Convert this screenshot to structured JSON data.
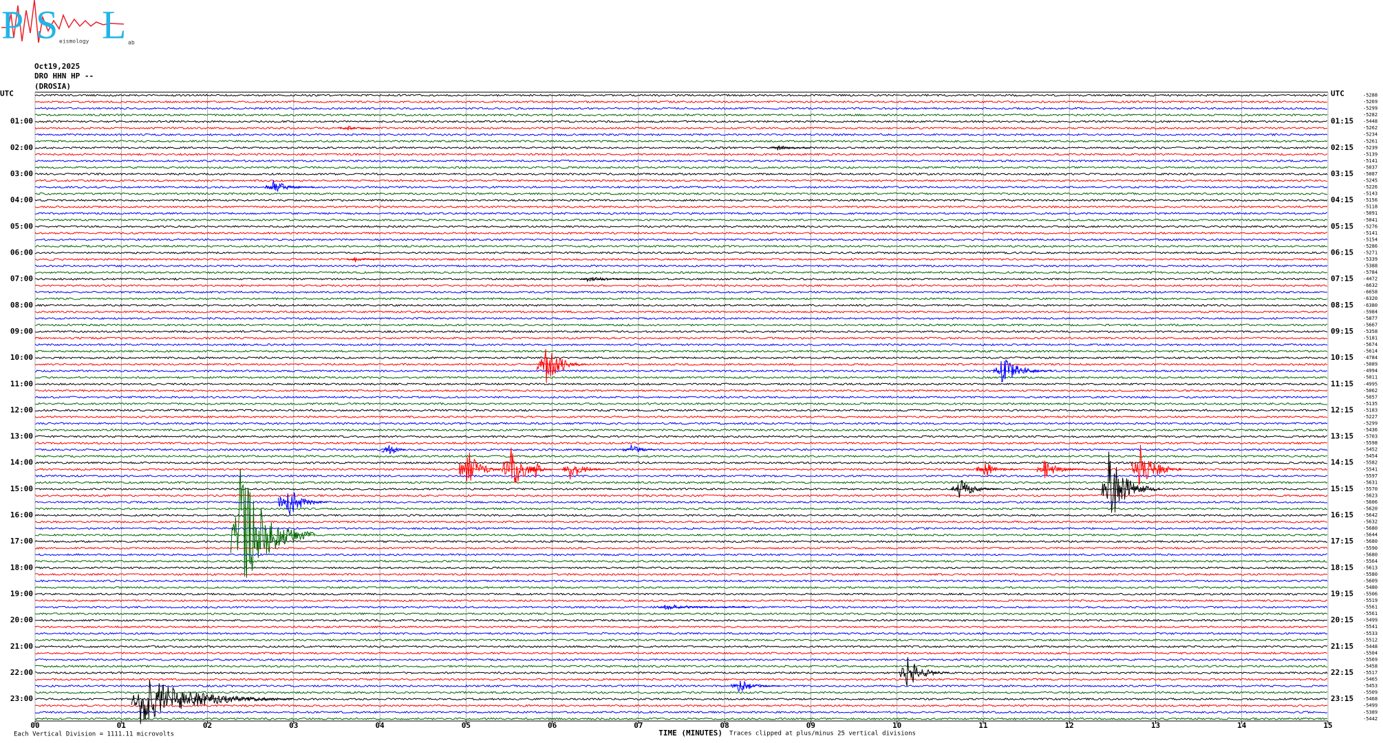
{
  "logo": {
    "letters": [
      "P",
      "S",
      "L"
    ],
    "words": [
      "eismology",
      "ab"
    ]
  },
  "header": {
    "date": "Oct19,2025",
    "station": "DRO HHN HP --",
    "site": "(DROSIA)"
  },
  "chart_data": {
    "type": "helicorder",
    "xlabel": "TIME (MINUTES)",
    "scale_note": "Each Vertical Division = 1111.11 microvolts",
    "clip_note": "Traces clipped at plus/minus 25 vertical divisions",
    "xlim": [
      0,
      15
    ],
    "xticks": [
      {
        "value": 0,
        "label": "00"
      },
      {
        "value": 1,
        "label": "01"
      },
      {
        "value": 2,
        "label": "02"
      },
      {
        "value": 3,
        "label": "03"
      },
      {
        "value": 4,
        "label": "04"
      },
      {
        "value": 5,
        "label": "05"
      },
      {
        "value": 6,
        "label": "06"
      },
      {
        "value": 7,
        "label": "07"
      },
      {
        "value": 8,
        "label": "08"
      },
      {
        "value": 9,
        "label": "09"
      },
      {
        "value": 10,
        "label": "10"
      },
      {
        "value": 11,
        "label": "11"
      },
      {
        "value": 12,
        "label": "12"
      },
      {
        "value": 13,
        "label": "13"
      },
      {
        "value": 14,
        "label": "14"
      },
      {
        "value": 15,
        "label": "15"
      }
    ],
    "grid": true,
    "trace_colors": [
      "#000000",
      "#ff0000",
      "#0000ff",
      "#006400"
    ],
    "left_labels": [
      "UTC",
      "01:00",
      "02:00",
      "03:00",
      "04:00",
      "05:00",
      "06:00",
      "07:00",
      "08:00",
      "09:00",
      "10:00",
      "11:00",
      "12:00",
      "13:00",
      "14:00",
      "15:00",
      "16:00",
      "17:00",
      "18:00",
      "19:00",
      "20:00",
      "21:00",
      "22:00",
      "23:00"
    ],
    "right_labels": [
      "UTC",
      "01:15",
      "02:15",
      "03:15",
      "04:15",
      "05:15",
      "06:15",
      "07:15",
      "08:15",
      "09:15",
      "10:15",
      "11:15",
      "12:15",
      "13:15",
      "14:15",
      "15:15",
      "16:15",
      "17:15",
      "18:15",
      "19:15",
      "20:15",
      "21:15",
      "22:15",
      "23:15"
    ],
    "offsets": [
      -5288,
      -5269,
      -5299,
      -5282,
      -5448,
      -5262,
      -5234,
      -5261,
      -5239,
      -5139,
      -5141,
      -5037,
      -5087,
      -5245,
      -5226,
      -5143,
      -5156,
      -5118,
      -5091,
      -5041,
      -5276,
      -5141,
      -5154,
      -5286,
      -5271,
      -5339,
      -5388,
      -5784,
      -4472,
      -6632,
      -6658,
      -6320,
      -6380,
      -5984,
      -5877,
      -5667,
      -5358,
      -5181,
      -5674,
      -5614,
      -4784,
      -5089,
      -4994,
      -5011,
      -4995,
      -5062,
      -5057,
      -5135,
      -5183,
      -5227,
      -5299,
      -5436,
      -5703,
      -5598,
      -5452,
      -5454,
      -5582,
      -5541,
      -5597,
      -5631,
      -5570,
      -5623,
      -5606,
      -5620,
      -5642,
      -5632,
      -5680,
      -5644,
      -5680,
      -5590,
      -5680,
      -5564,
      -5613,
      -5580,
      -5609,
      -5480,
      -5506,
      -5519,
      -5561,
      -5561,
      -5499,
      -5541,
      -5533,
      -5512,
      -5448,
      -5504,
      -5569,
      -5458,
      -5517,
      -5465,
      -5453,
      -5509,
      -5468,
      -5499,
      -5389,
      -5442
    ],
    "events": [
      {
        "trace": 5,
        "minute": 3.6,
        "amplitude": 0.5,
        "duration": 0.3
      },
      {
        "trace": 8,
        "minute": 8.6,
        "amplitude": 0.5,
        "duration": 0.4
      },
      {
        "trace": 14,
        "minute": 2.75,
        "amplitude": 1.2,
        "duration": 0.5
      },
      {
        "trace": 25,
        "minute": 3.7,
        "amplitude": 0.6,
        "duration": 0.3
      },
      {
        "trace": 28,
        "minute": 6.4,
        "amplitude": 0.5,
        "duration": 0.8
      },
      {
        "trace": 41,
        "minute": 5.9,
        "amplitude": 4,
        "duration": 0.5
      },
      {
        "trace": 42,
        "minute": 11.2,
        "amplitude": 2.5,
        "duration": 0.6
      },
      {
        "trace": 54,
        "minute": 4.1,
        "amplitude": 1.5,
        "duration": 0.2
      },
      {
        "trace": 54,
        "minute": 6.9,
        "amplitude": 1.2,
        "duration": 0.3
      },
      {
        "trace": 57,
        "minute": 5.0,
        "amplitude": 4,
        "duration": 0.4
      },
      {
        "trace": 57,
        "minute": 5.5,
        "amplitude": 5,
        "duration": 0.4
      },
      {
        "trace": 57,
        "minute": 5.8,
        "amplitude": 1.5,
        "duration": 0.2
      },
      {
        "trace": 57,
        "minute": 6.2,
        "amplitude": 2,
        "duration": 0.4
      },
      {
        "trace": 57,
        "minute": 11.0,
        "amplitude": 1.5,
        "duration": 0.4
      },
      {
        "trace": 57,
        "minute": 11.7,
        "amplitude": 1.5,
        "duration": 0.5
      },
      {
        "trace": 57,
        "minute": 12.8,
        "amplitude": 5,
        "duration": 0.5
      },
      {
        "trace": 60,
        "minute": 10.7,
        "amplitude": 2,
        "duration": 0.5
      },
      {
        "trace": 60,
        "minute": 12.45,
        "amplitude": 6,
        "duration": 0.6
      },
      {
        "trace": 62,
        "minute": 2.9,
        "amplitude": 3,
        "duration": 0.5
      },
      {
        "trace": 67,
        "minute": 2.35,
        "amplitude": 12,
        "duration": 0.9
      },
      {
        "trace": 78,
        "minute": 7.3,
        "amplitude": 0.5,
        "duration": 1.0
      },
      {
        "trace": 88,
        "minute": 10.1,
        "amplitude": 3,
        "duration": 0.5
      },
      {
        "trace": 90,
        "minute": 8.15,
        "amplitude": 1.2,
        "duration": 0.5
      },
      {
        "trace": 92,
        "minute": 1.2,
        "amplitude": 4,
        "duration": 1.8
      }
    ]
  }
}
